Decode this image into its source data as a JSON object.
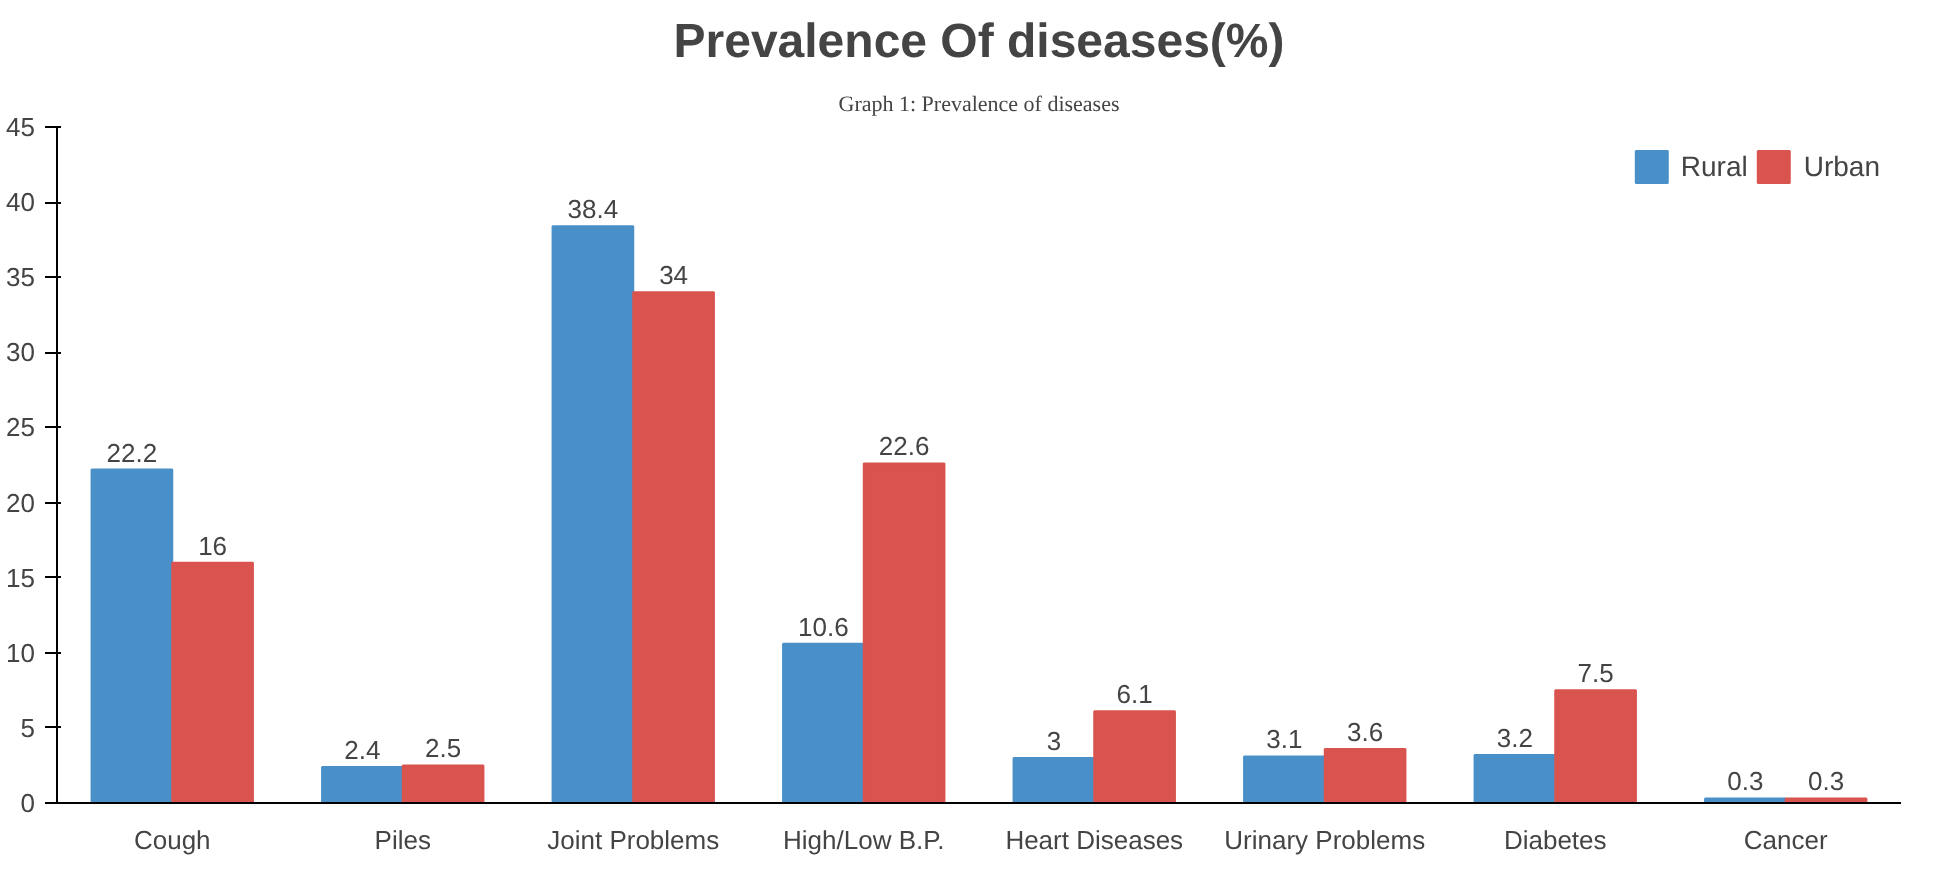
{
  "chart_data": {
    "type": "bar",
    "title": "Prevalence Of diseases(%)",
    "annotations": [
      "Graph 1: Prevalence of diseases"
    ],
    "categories": [
      "Cough",
      "Piles",
      "Joint Problems",
      "High/Low B.P.",
      "Heart Diseases",
      "Urinary Problems",
      "Diabetes",
      "Cancer"
    ],
    "series": [
      {
        "name": "Rural",
        "color": "#4a90c8",
        "values": [
          22.2,
          2.4,
          38.4,
          10.6,
          3,
          3.1,
          3.2,
          0.3
        ]
      },
      {
        "name": "Urban",
        "color": "#d9534f",
        "values": [
          16,
          2.5,
          34,
          22.6,
          6.1,
          3.6,
          7.5,
          0.3
        ]
      }
    ],
    "ylim": [
      0,
      45
    ],
    "yticks": [
      0,
      5,
      10,
      15,
      20,
      25,
      30,
      35,
      40,
      45
    ],
    "data_labels": true,
    "legend": "top right",
    "grid": false
  }
}
